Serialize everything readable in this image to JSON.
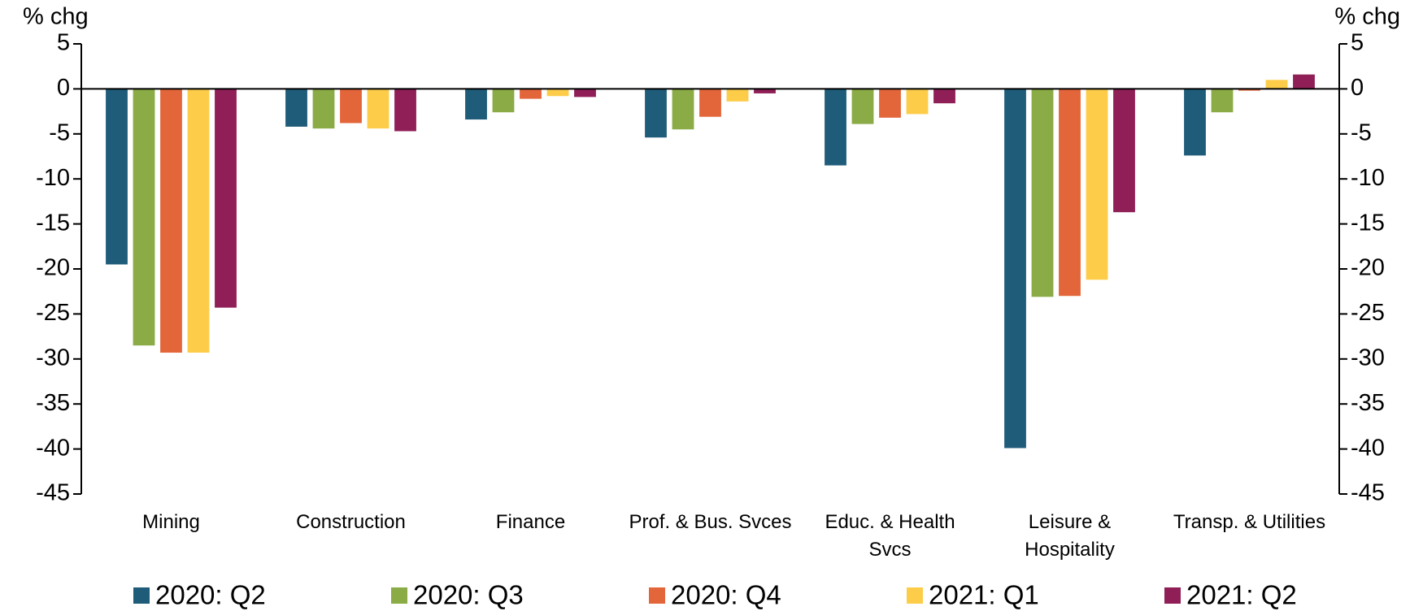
{
  "chart_data": {
    "type": "bar",
    "y_label": "% chg",
    "y2_label": "% chg",
    "categories": [
      "Mining",
      "Construction",
      "Finance",
      "Prof. & Bus. Svces",
      "Educ. & Health Svcs",
      "Leisure & Hospitality",
      "Transp. & Utilities"
    ],
    "series": [
      {
        "name": "2020: Q2",
        "color": "#1f5c7a",
        "values": [
          -19.5,
          -4.2,
          -3.4,
          -5.4,
          -8.5,
          -39.9,
          -7.4
        ]
      },
      {
        "name": "2020: Q3",
        "color": "#8aab45",
        "values": [
          -28.5,
          -4.4,
          -2.6,
          -4.5,
          -3.9,
          -23.1,
          -2.6
        ]
      },
      {
        "name": "2020: Q4",
        "color": "#e3653a",
        "values": [
          -29.3,
          -3.8,
          -1.1,
          -3.1,
          -3.2,
          -23.0,
          -0.2
        ]
      },
      {
        "name": "2021: Q1",
        "color": "#fdcd4a",
        "values": [
          -29.3,
          -4.4,
          -0.8,
          -1.4,
          -2.8,
          -21.2,
          1.0
        ]
      },
      {
        "name": "2021: Q2",
        "color": "#8f1f56",
        "values": [
          -24.3,
          -4.7,
          -0.9,
          -0.5,
          -1.6,
          -13.7,
          1.6
        ]
      }
    ],
    "ylim": [
      -45,
      5
    ],
    "yticks": [
      -45,
      -40,
      -35,
      -30,
      -25,
      -20,
      -15,
      -10,
      -5,
      0,
      5
    ],
    "y2lim": [
      -45,
      5
    ],
    "y2ticks": [
      -45,
      -40,
      -35,
      -30,
      -25,
      -20,
      -15,
      -10,
      -5,
      0,
      5
    ],
    "grid": false,
    "legend": "bottom"
  }
}
